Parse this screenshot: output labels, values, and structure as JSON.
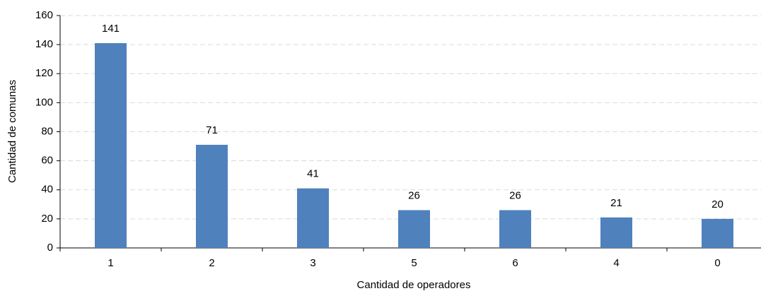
{
  "chart_data": {
    "type": "bar",
    "categories": [
      "1",
      "2",
      "3",
      "5",
      "6",
      "4",
      "0"
    ],
    "values": [
      141,
      71,
      41,
      26,
      26,
      21,
      20
    ],
    "color": "#4f81bd",
    "xlabel": "Cantidad de operadores",
    "ylabel": "Cantidad de comunas",
    "ylim": [
      0,
      160
    ],
    "yticks": [
      0,
      20,
      40,
      60,
      80,
      100,
      120,
      140,
      160
    ],
    "grid": true
  }
}
